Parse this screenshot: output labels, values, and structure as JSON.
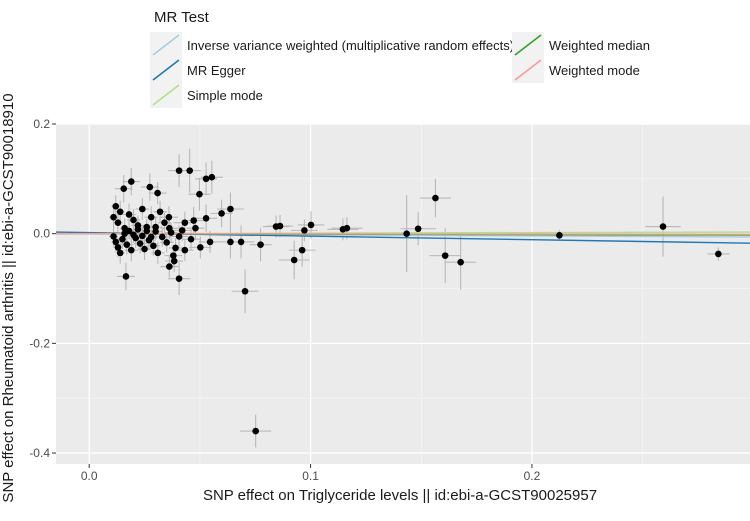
{
  "chart_data": {
    "type": "scatter",
    "title": "",
    "xlabel": "SNP effect on Triglyceride levels || id:ebi-a-GCST90025957",
    "ylabel": "SNP effect on Rheumatoid arthritis || id:ebi-a-GCST90018910",
    "xlim": [
      -0.015,
      0.2985
    ],
    "ylim": [
      -0.42,
      0.2
    ],
    "x_ticks": [
      0.0,
      0.1,
      0.2
    ],
    "x_tick_labels": [
      "0.0",
      "0.1",
      "0.2"
    ],
    "y_ticks": [
      0.2,
      0.0,
      -0.2,
      -0.4
    ],
    "y_tick_labels": [
      "0.2",
      "0.0",
      "-0.2",
      "-0.4"
    ],
    "grid": true,
    "legend_position": "top",
    "legend": {
      "title": "MR Test",
      "entries": [
        {
          "label": "Inverse variance weighted (multiplicative random effects)",
          "color": "#a6cee3"
        },
        {
          "label": "MR Egger",
          "color": "#1f78b4"
        },
        {
          "label": "Simple mode",
          "color": "#b2df8a"
        },
        {
          "label": "Weighted median",
          "color": "#33a02c"
        },
        {
          "label": "Weighted mode",
          "color": "#fb9a99"
        }
      ]
    },
    "lines": [
      {
        "name": "Inverse variance weighted (multiplicative random effects)",
        "intercept": 0,
        "slope": -0.02,
        "color": "#a6cee3"
      },
      {
        "name": "MR Egger",
        "intercept": 0.002,
        "slope": -0.065,
        "color": "#1f78b4"
      },
      {
        "name": "Simple mode",
        "intercept": 0,
        "slope": 0.01,
        "color": "#b2df8a"
      },
      {
        "name": "Weighted median",
        "intercept": 0,
        "slope": -0.008,
        "color": "#33a02c"
      },
      {
        "name": "Weighted mode",
        "intercept": 0,
        "slope": -0.003,
        "color": "#fb9a99"
      }
    ],
    "points": [
      {
        "x": 0.0406,
        "y": 0.115,
        "xerr": 0.005,
        "yerr": 0.03
      },
      {
        "x": 0.0454,
        "y": 0.115,
        "xerr": 0.005,
        "yerr": 0.04
      },
      {
        "x": 0.0554,
        "y": 0.103,
        "xerr": 0.005,
        "yerr": 0.03
      },
      {
        "x": 0.0528,
        "y": 0.1,
        "xerr": 0.005,
        "yerr": 0.03
      },
      {
        "x": 0.019,
        "y": 0.095,
        "xerr": 0.004,
        "yerr": 0.025
      },
      {
        "x": 0.0274,
        "y": 0.085,
        "xerr": 0.004,
        "yerr": 0.025
      },
      {
        "x": 0.0156,
        "y": 0.082,
        "xerr": 0.004,
        "yerr": 0.025
      },
      {
        "x": 0.0309,
        "y": 0.074,
        "xerr": 0.004,
        "yerr": 0.02
      },
      {
        "x": 0.0498,
        "y": 0.072,
        "xerr": 0.005,
        "yerr": 0.03
      },
      {
        "x": 0.0638,
        "y": 0.045,
        "xerr": 0.006,
        "yerr": 0.03
      },
      {
        "x": 0.0598,
        "y": 0.037,
        "xerr": 0.005,
        "yerr": 0.025
      },
      {
        "x": 0.0528,
        "y": 0.028,
        "xerr": 0.005,
        "yerr": 0.025
      },
      {
        "x": 0.0472,
        "y": 0.024,
        "xerr": 0.005,
        "yerr": 0.025
      },
      {
        "x": 0.0432,
        "y": 0.02,
        "xerr": 0.005,
        "yerr": 0.02
      },
      {
        "x": 0.0362,
        "y": 0.01,
        "xerr": 0.004,
        "yerr": 0.02
      },
      {
        "x": 0.0406,
        "y": -0.005,
        "xerr": 0.004,
        "yerr": 0.02
      },
      {
        "x": 0.0546,
        "y": -0.015,
        "xerr": 0.005,
        "yerr": 0.02
      },
      {
        "x": 0.0502,
        "y": -0.025,
        "xerr": 0.005,
        "yerr": 0.02
      },
      {
        "x": 0.0432,
        "y": -0.03,
        "xerr": 0.004,
        "yerr": 0.02
      },
      {
        "x": 0.0384,
        "y": -0.05,
        "xerr": 0.004,
        "yerr": 0.02
      },
      {
        "x": 0.0362,
        "y": -0.06,
        "xerr": 0.004,
        "yerr": 0.02
      },
      {
        "x": 0.0406,
        "y": -0.082,
        "xerr": 0.005,
        "yerr": 0.03
      },
      {
        "x": 0.0166,
        "y": -0.078,
        "xerr": 0.004,
        "yerr": 0.025
      },
      {
        "x": 0.0638,
        "y": -0.015,
        "xerr": 0.006,
        "yerr": 0.03
      },
      {
        "x": 0.0686,
        "y": -0.015,
        "xerr": 0.006,
        "yerr": 0.03
      },
      {
        "x": 0.0704,
        "y": -0.105,
        "xerr": 0.006,
        "yerr": 0.04
      },
      {
        "x": 0.0774,
        "y": -0.02,
        "xerr": 0.005,
        "yerr": 0.03
      },
      {
        "x": 0.0752,
        "y": -0.36,
        "xerr": 0.007,
        "yerr": 0.03
      },
      {
        "x": 0.0844,
        "y": 0.013,
        "xerr": 0.006,
        "yerr": 0.02
      },
      {
        "x": 0.0862,
        "y": 0.014,
        "xerr": 0.006,
        "yerr": 0.02
      },
      {
        "x": 0.0926,
        "y": -0.048,
        "xerr": 0.007,
        "yerr": 0.035
      },
      {
        "x": 0.0962,
        "y": -0.03,
        "xerr": 0.006,
        "yerr": 0.03
      },
      {
        "x": 0.0972,
        "y": 0.006,
        "xerr": 0.006,
        "yerr": 0.02
      },
      {
        "x": 0.1002,
        "y": 0.016,
        "xerr": 0.006,
        "yerr": 0.025
      },
      {
        "x": 0.1146,
        "y": 0.008,
        "xerr": 0.007,
        "yerr": 0.02
      },
      {
        "x": 0.1164,
        "y": 0.01,
        "xerr": 0.007,
        "yerr": 0.02
      },
      {
        "x": 0.1434,
        "y": 0.0,
        "xerr": 0.008,
        "yerr": 0.07
      },
      {
        "x": 0.1486,
        "y": 0.009,
        "xerr": 0.008,
        "yerr": 0.03
      },
      {
        "x": 0.1564,
        "y": 0.065,
        "xerr": 0.007,
        "yerr": 0.035
      },
      {
        "x": 0.1608,
        "y": -0.04,
        "xerr": 0.007,
        "yerr": 0.05
      },
      {
        "x": 0.1678,
        "y": -0.052,
        "xerr": 0.007,
        "yerr": 0.05
      },
      {
        "x": 0.2124,
        "y": -0.003,
        "xerr": 0.006,
        "yerr": 0.01
      },
      {
        "x": 0.2592,
        "y": 0.013,
        "xerr": 0.008,
        "yerr": 0.055
      },
      {
        "x": 0.2842,
        "y": -0.037,
        "xerr": 0.005,
        "yerr": 0.012
      },
      {
        "x": 0.012,
        "y": 0.05,
        "xerr": 0.002,
        "yerr": 0.02
      },
      {
        "x": 0.014,
        "y": 0.04,
        "xerr": 0.002,
        "yerr": 0.02
      },
      {
        "x": 0.011,
        "y": 0.03,
        "xerr": 0.002,
        "yerr": 0.018
      },
      {
        "x": 0.013,
        "y": 0.02,
        "xerr": 0.002,
        "yerr": 0.018
      },
      {
        "x": 0.016,
        "y": 0.01,
        "xerr": 0.002,
        "yerr": 0.018
      },
      {
        "x": 0.018,
        "y": 0.035,
        "xerr": 0.003,
        "yerr": 0.02
      },
      {
        "x": 0.02,
        "y": 0.025,
        "xerr": 0.003,
        "yerr": 0.02
      },
      {
        "x": 0.022,
        "y": 0.015,
        "xerr": 0.003,
        "yerr": 0.018
      },
      {
        "x": 0.024,
        "y": 0.045,
        "xerr": 0.003,
        "yerr": 0.02
      },
      {
        "x": 0.026,
        "y": 0.005,
        "xerr": 0.003,
        "yerr": 0.018
      },
      {
        "x": 0.028,
        "y": 0.03,
        "xerr": 0.003,
        "yerr": 0.02
      },
      {
        "x": 0.03,
        "y": 0.012,
        "xerr": 0.003,
        "yerr": 0.018
      },
      {
        "x": 0.032,
        "y": 0.04,
        "xerr": 0.003,
        "yerr": 0.02
      },
      {
        "x": 0.034,
        "y": 0.02,
        "xerr": 0.003,
        "yerr": 0.018
      },
      {
        "x": 0.011,
        "y": -0.005,
        "xerr": 0.002,
        "yerr": 0.018
      },
      {
        "x": 0.012,
        "y": -0.015,
        "xerr": 0.002,
        "yerr": 0.018
      },
      {
        "x": 0.013,
        "y": -0.025,
        "xerr": 0.002,
        "yerr": 0.018
      },
      {
        "x": 0.014,
        "y": -0.035,
        "xerr": 0.002,
        "yerr": 0.02
      },
      {
        "x": 0.015,
        "y": -0.01,
        "xerr": 0.002,
        "yerr": 0.018
      },
      {
        "x": 0.017,
        "y": -0.02,
        "xerr": 0.003,
        "yerr": 0.018
      },
      {
        "x": 0.019,
        "y": -0.03,
        "xerr": 0.003,
        "yerr": 0.02
      },
      {
        "x": 0.021,
        "y": -0.008,
        "xerr": 0.003,
        "yerr": 0.018
      },
      {
        "x": 0.023,
        "y": -0.018,
        "xerr": 0.003,
        "yerr": 0.018
      },
      {
        "x": 0.025,
        "y": -0.028,
        "xerr": 0.003,
        "yerr": 0.02
      },
      {
        "x": 0.027,
        "y": -0.012,
        "xerr": 0.003,
        "yerr": 0.018
      },
      {
        "x": 0.029,
        "y": -0.022,
        "xerr": 0.003,
        "yerr": 0.018
      },
      {
        "x": 0.031,
        "y": -0.035,
        "xerr": 0.003,
        "yerr": 0.02
      },
      {
        "x": 0.033,
        "y": -0.006,
        "xerr": 0.003,
        "yerr": 0.018
      },
      {
        "x": 0.035,
        "y": -0.016,
        "xerr": 0.003,
        "yerr": 0.018
      },
      {
        "x": 0.037,
        "y": 0.002,
        "xerr": 0.003,
        "yerr": 0.018
      },
      {
        "x": 0.039,
        "y": -0.026,
        "xerr": 0.003,
        "yerr": 0.018
      },
      {
        "x": 0.016,
        "y": 0.0,
        "xerr": 0.002,
        "yerr": 0.015
      },
      {
        "x": 0.018,
        "y": 0.005,
        "xerr": 0.002,
        "yerr": 0.015
      },
      {
        "x": 0.02,
        "y": -0.002,
        "xerr": 0.002,
        "yerr": 0.015
      },
      {
        "x": 0.022,
        "y": 0.008,
        "xerr": 0.002,
        "yerr": 0.015
      },
      {
        "x": 0.024,
        "y": -0.004,
        "xerr": 0.002,
        "yerr": 0.015
      },
      {
        "x": 0.026,
        "y": 0.012,
        "xerr": 0.003,
        "yerr": 0.015
      },
      {
        "x": 0.028,
        "y": -0.006,
        "xerr": 0.003,
        "yerr": 0.015
      },
      {
        "x": 0.03,
        "y": 0.004,
        "xerr": 0.003,
        "yerr": 0.015
      },
      {
        "x": 0.042,
        "y": 0.006,
        "xerr": 0.004,
        "yerr": 0.02
      },
      {
        "x": 0.046,
        "y": -0.01,
        "xerr": 0.004,
        "yerr": 0.02
      },
      {
        "x": 0.048,
        "y": 0.01,
        "xerr": 0.004,
        "yerr": 0.02
      },
      {
        "x": 0.036,
        "y": 0.03,
        "xerr": 0.004,
        "yerr": 0.02
      },
      {
        "x": 0.038,
        "y": -0.04,
        "xerr": 0.004,
        "yerr": 0.02
      }
    ]
  }
}
